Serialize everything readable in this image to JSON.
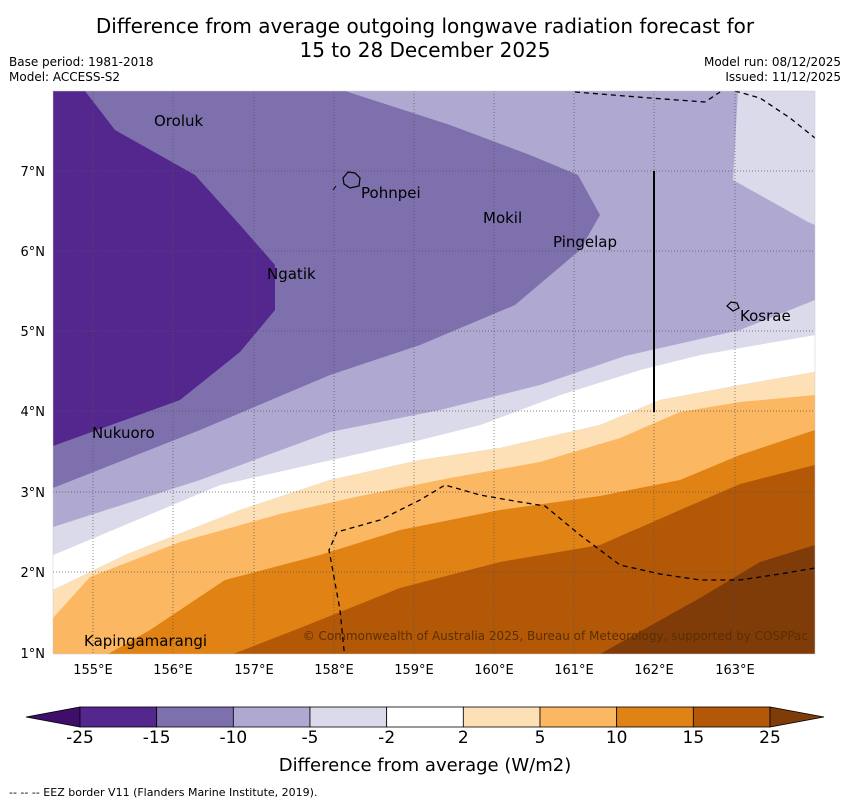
{
  "title_line1": "Difference from average outgoing longwave radiation forecast for",
  "title_line2": "15 to 28 December 2025",
  "meta_left": {
    "base_period": "Base period: 1981-2018",
    "model": "Model: ACCESS-S2"
  },
  "meta_right": {
    "model_run": "Model run: 08/12/2025",
    "issued": "Issued: 11/12/2025"
  },
  "places": [
    "Oroluk",
    "Pohnpei",
    "Mokil",
    "Pingelap",
    "Ngatik",
    "Kosrae",
    "Nukuoro",
    "Kapingamarangi"
  ],
  "lat_labels": [
    "7°N",
    "6°N",
    "5°N",
    "4°N",
    "3°N",
    "2°N",
    "1°N"
  ],
  "lon_labels": [
    "155°E",
    "156°E",
    "157°E",
    "158°E",
    "159°E",
    "160°E",
    "161°E",
    "162°E",
    "163°E"
  ],
  "copyright": "© Commonwealth of Australia 2025, Bureau of Meteorology, supported by COSPPac",
  "colorbar": {
    "ticks": [
      "-25",
      "-15",
      "-10",
      "-5",
      "-2",
      "2",
      "5",
      "10",
      "15",
      "25"
    ],
    "colors": [
      "#3d0f6b",
      "#54278f",
      "#7e70ad",
      "#afa8d1",
      "#dadaeb",
      "#ffffff",
      "#fee0b6",
      "#fbb761",
      "#e08214",
      "#b35806",
      "#7f3b08"
    ],
    "title": "Difference from average (W/m2)"
  },
  "footer": "--  --  -- EEZ border V11 (Flanders Marine Institute, 2019)."
}
